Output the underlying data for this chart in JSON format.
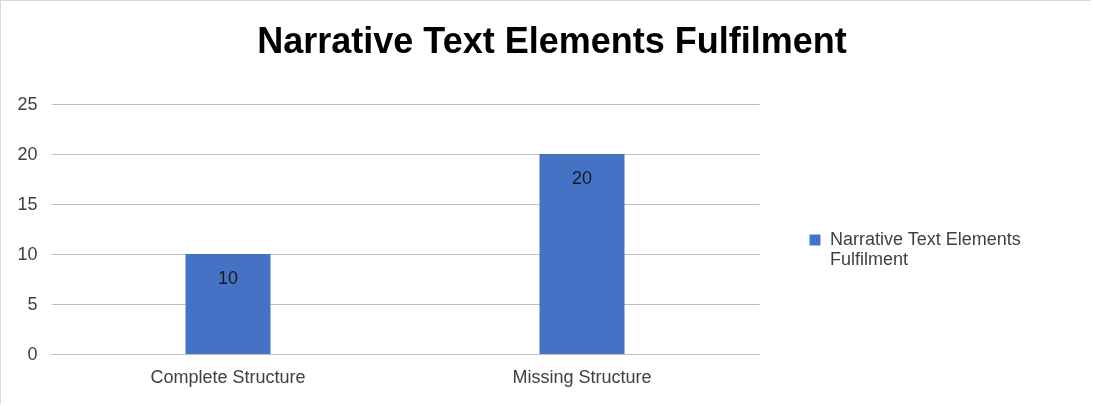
{
  "chart_data": {
    "type": "bar",
    "title": "Narrative Text Elements Fulfilment",
    "categories": [
      "Complete Structure",
      "Missing Structure"
    ],
    "series": [
      {
        "name": "Narrative Text Elements Fulfilment",
        "color": "#4472c4",
        "values": [
          10,
          20
        ]
      }
    ],
    "ylim": [
      0,
      25
    ],
    "yticks": [
      0,
      5,
      10,
      15,
      20,
      25
    ],
    "grid": "y",
    "legend": "right",
    "data_labels": true
  }
}
